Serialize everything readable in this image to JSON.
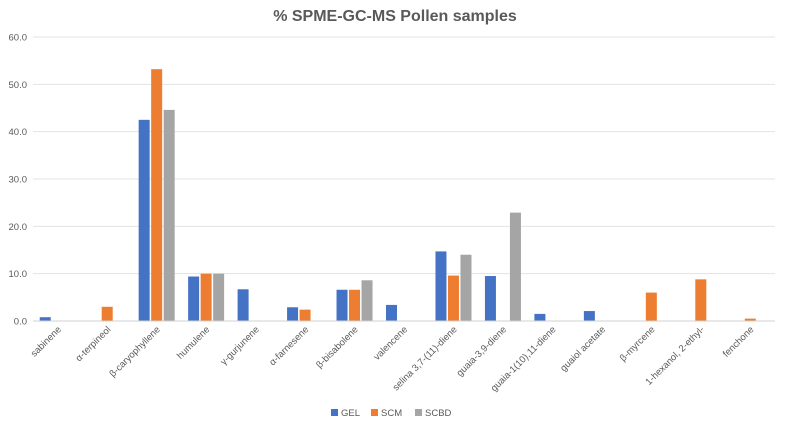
{
  "chart_data": {
    "type": "bar",
    "title": "% SPME-GC-MS  Pollen samples",
    "xlabel": "",
    "ylabel": "",
    "ylim": [
      0,
      60
    ],
    "yticks": [
      "0.0",
      "10.0",
      "20.0",
      "30.0",
      "40.0",
      "50.0",
      "60.0"
    ],
    "grid": true,
    "legend_position": "bottom",
    "categories": [
      "sabinene",
      "α-terpineol",
      "β-caryophyllene",
      "humulene",
      "γ-gurjunene",
      "α-farnesene",
      "β-bisabolene",
      "valencene",
      "selina 3,7-(11)-diene",
      "guaia-3,9-diene",
      "guaia-1(10),11-diene",
      "guaiol acetate",
      "β-myrcene",
      "1-hexanol, 2-ethyl-",
      "fenchone"
    ],
    "series": [
      {
        "name": "GEL",
        "color": "#4472c4",
        "values": [
          0.8,
          0,
          42.5,
          9.4,
          6.7,
          2.9,
          6.6,
          3.4,
          14.7,
          9.5,
          1.5,
          2.1,
          0,
          0,
          0
        ]
      },
      {
        "name": "SCM",
        "color": "#ed7d31",
        "values": [
          0,
          3.0,
          53.2,
          10.0,
          0,
          2.4,
          6.6,
          0,
          9.6,
          0,
          0,
          0,
          6.0,
          8.8,
          0.5
        ]
      },
      {
        "name": "SCBD",
        "color": "#a5a5a5",
        "values": [
          0,
          0,
          44.6,
          10.0,
          0,
          0,
          8.6,
          0,
          14.0,
          22.9,
          0,
          0,
          0,
          0,
          0
        ]
      }
    ]
  }
}
